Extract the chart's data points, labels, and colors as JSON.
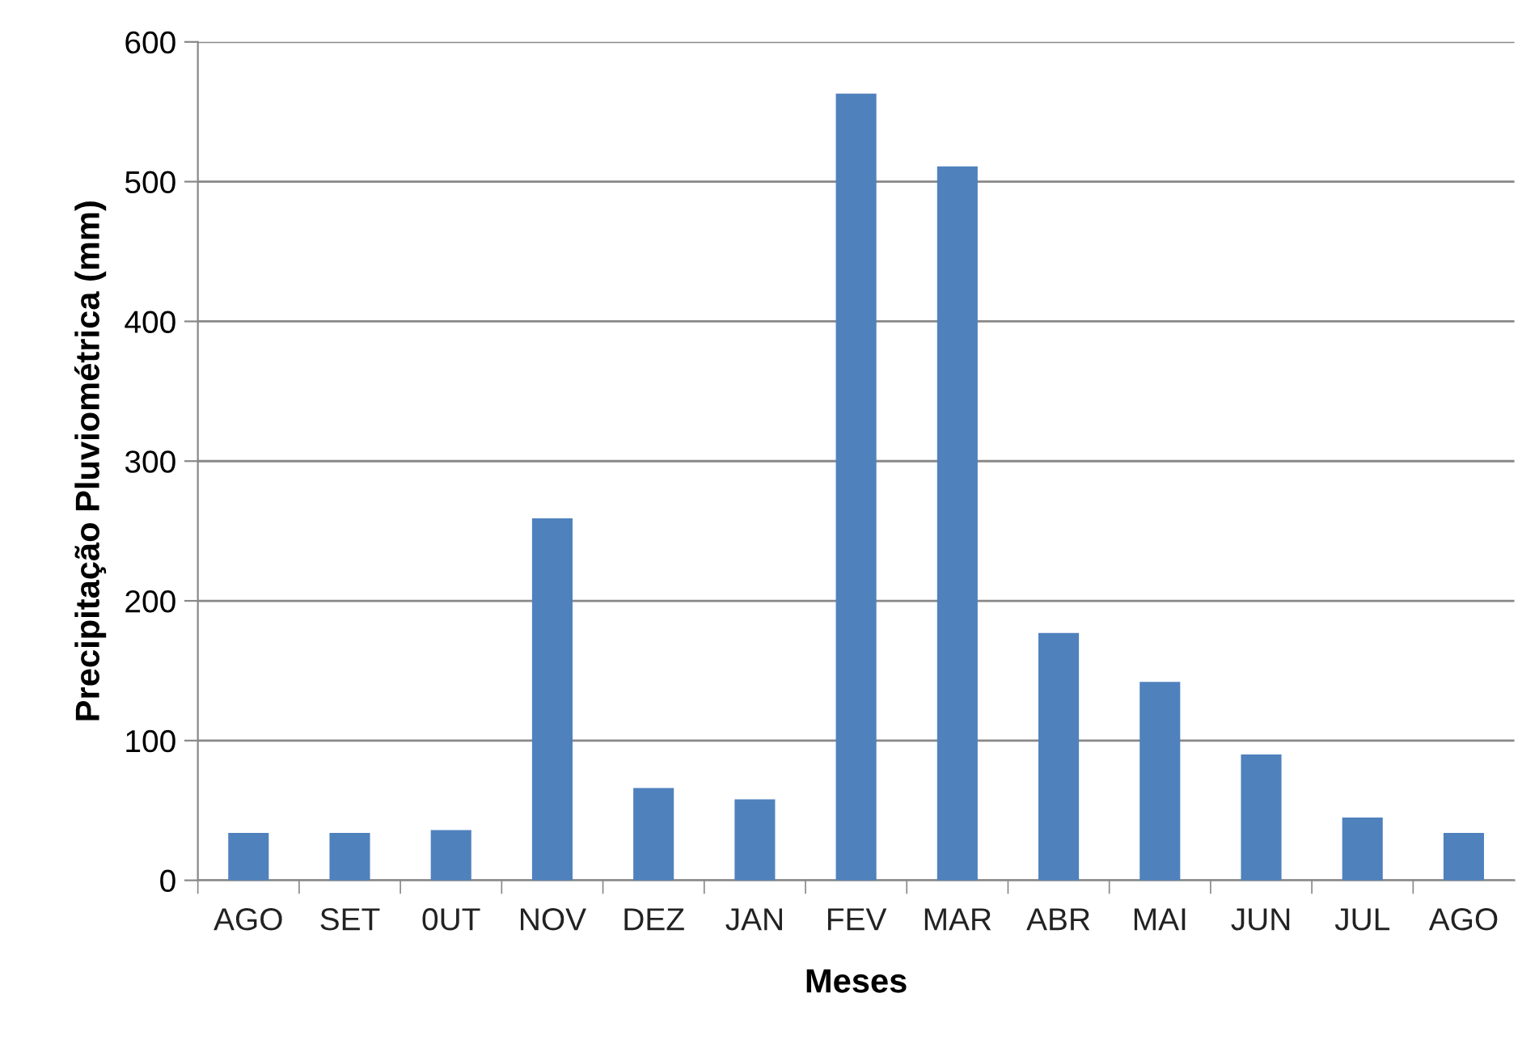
{
  "chart_data": {
    "type": "bar",
    "xlabel": "Meses",
    "ylabel": "Precipitação Pluviométrica (mm)",
    "categories": [
      "AGO",
      "SET",
      "0UT",
      "NOV",
      "DEZ",
      "JAN",
      "FEV",
      "MAR",
      "ABR",
      "MAI",
      "JUN",
      "JUL",
      "AGO"
    ],
    "values": [
      34,
      34,
      36,
      259,
      66,
      58,
      563,
      511,
      177,
      142,
      90,
      45,
      34
    ],
    "color": "#4f81bd",
    "ylim": [
      0,
      600
    ],
    "yticks": [
      0,
      100,
      200,
      300,
      400,
      500,
      600
    ],
    "grid": "y"
  }
}
